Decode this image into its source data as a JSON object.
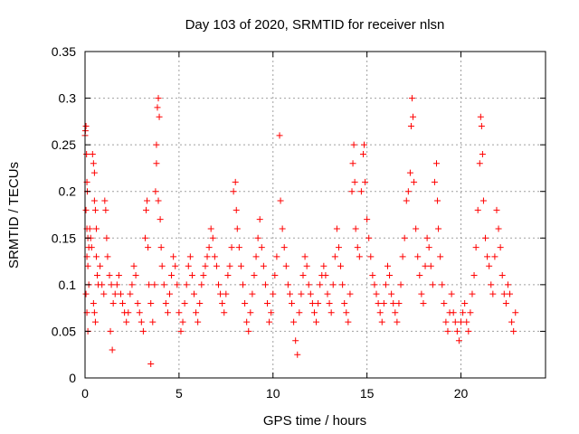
{
  "chart_data": {
    "type": "scatter",
    "title": "Day 103 of 2020, SRMTID for receiver nlsn",
    "xlabel": "GPS time / hours",
    "ylabel": "SRMTID / TECUs",
    "xlim": [
      0,
      24.5
    ],
    "ylim": [
      0,
      0.35
    ],
    "xticks": [
      0,
      5,
      10,
      15,
      20
    ],
    "xtick_labels": [
      "0",
      "5",
      "10",
      "15",
      "20"
    ],
    "yticks": [
      0,
      0.05,
      0.1,
      0.15,
      0.2,
      0.25,
      0.3,
      0.35
    ],
    "ytick_labels": [
      "0",
      "0.05",
      "0.1",
      "0.15",
      "0.2",
      "0.25",
      "0.3",
      "0.35"
    ],
    "grid": true,
    "marker": "+",
    "color": "#ff0000",
    "series": [
      {
        "points": [
          [
            0.0,
            0.26
          ],
          [
            0.02,
            0.265
          ],
          [
            0.05,
            0.27
          ],
          [
            0.08,
            0.24
          ],
          [
            0.1,
            0.21
          ],
          [
            0.12,
            0.2
          ],
          [
            0.05,
            0.18
          ],
          [
            0.1,
            0.16
          ],
          [
            0.15,
            0.15
          ],
          [
            0.2,
            0.14
          ],
          [
            0.1,
            0.13
          ],
          [
            0.15,
            0.12
          ],
          [
            0.2,
            0.1
          ],
          [
            0.05,
            0.09
          ],
          [
            0.1,
            0.07
          ],
          [
            0.15,
            0.05
          ],
          [
            0.25,
            0.16
          ],
          [
            0.3,
            0.15
          ],
          [
            0.35,
            0.14
          ],
          [
            0.4,
            0.24
          ],
          [
            0.45,
            0.23
          ],
          [
            0.5,
            0.22
          ],
          [
            0.5,
            0.19
          ],
          [
            0.55,
            0.18
          ],
          [
            0.6,
            0.16
          ],
          [
            0.6,
            0.13
          ],
          [
            0.65,
            0.11
          ],
          [
            0.7,
            0.1
          ],
          [
            0.45,
            0.08
          ],
          [
            0.5,
            0.07
          ],
          [
            0.55,
            0.06
          ],
          [
            0.8,
            0.12
          ],
          [
            0.9,
            0.1
          ],
          [
            1.0,
            0.09
          ],
          [
            1.05,
            0.19
          ],
          [
            1.1,
            0.18
          ],
          [
            1.15,
            0.15
          ],
          [
            1.2,
            0.13
          ],
          [
            1.3,
            0.11
          ],
          [
            1.4,
            0.1
          ],
          [
            1.35,
            0.05
          ],
          [
            1.45,
            0.03
          ],
          [
            1.5,
            0.08
          ],
          [
            1.6,
            0.09
          ],
          [
            1.7,
            0.1
          ],
          [
            1.8,
            0.11
          ],
          [
            1.9,
            0.09
          ],
          [
            2.0,
            0.08
          ],
          [
            2.1,
            0.07
          ],
          [
            2.2,
            0.06
          ],
          [
            2.3,
            0.07
          ],
          [
            2.4,
            0.09
          ],
          [
            2.5,
            0.1
          ],
          [
            2.6,
            0.12
          ],
          [
            2.7,
            0.11
          ],
          [
            2.8,
            0.08
          ],
          [
            2.9,
            0.07
          ],
          [
            3.0,
            0.06
          ],
          [
            3.1,
            0.05
          ],
          [
            3.2,
            0.15
          ],
          [
            3.25,
            0.18
          ],
          [
            3.3,
            0.19
          ],
          [
            3.35,
            0.14
          ],
          [
            3.4,
            0.1
          ],
          [
            3.5,
            0.08
          ],
          [
            3.6,
            0.06
          ],
          [
            3.5,
            0.015
          ],
          [
            3.7,
            0.1
          ],
          [
            3.75,
            0.2
          ],
          [
            3.8,
            0.23
          ],
          [
            3.8,
            0.25
          ],
          [
            3.85,
            0.29
          ],
          [
            3.9,
            0.3
          ],
          [
            3.95,
            0.28
          ],
          [
            3.9,
            0.19
          ],
          [
            4.0,
            0.17
          ],
          [
            4.05,
            0.14
          ],
          [
            4.1,
            0.12
          ],
          [
            4.2,
            0.1
          ],
          [
            4.3,
            0.08
          ],
          [
            4.4,
            0.07
          ],
          [
            4.5,
            0.09
          ],
          [
            4.6,
            0.11
          ],
          [
            4.7,
            0.13
          ],
          [
            4.8,
            0.12
          ],
          [
            4.9,
            0.1
          ],
          [
            5.0,
            0.07
          ],
          [
            5.1,
            0.05
          ],
          [
            5.2,
            0.06
          ],
          [
            5.3,
            0.08
          ],
          [
            5.4,
            0.1
          ],
          [
            5.5,
            0.12
          ],
          [
            5.6,
            0.13
          ],
          [
            5.7,
            0.11
          ],
          [
            5.8,
            0.09
          ],
          [
            5.9,
            0.07
          ],
          [
            6.0,
            0.06
          ],
          [
            6.1,
            0.08
          ],
          [
            6.2,
            0.1
          ],
          [
            6.3,
            0.11
          ],
          [
            6.4,
            0.12
          ],
          [
            6.5,
            0.13
          ],
          [
            6.6,
            0.14
          ],
          [
            6.7,
            0.16
          ],
          [
            6.8,
            0.15
          ],
          [
            6.9,
            0.13
          ],
          [
            7.0,
            0.12
          ],
          [
            7.1,
            0.1
          ],
          [
            7.2,
            0.09
          ],
          [
            7.3,
            0.08
          ],
          [
            7.4,
            0.07
          ],
          [
            7.5,
            0.09
          ],
          [
            7.6,
            0.11
          ],
          [
            7.7,
            0.12
          ],
          [
            7.8,
            0.14
          ],
          [
            7.9,
            0.2
          ],
          [
            8.0,
            0.21
          ],
          [
            8.05,
            0.18
          ],
          [
            8.1,
            0.16
          ],
          [
            8.2,
            0.14
          ],
          [
            8.3,
            0.12
          ],
          [
            8.4,
            0.1
          ],
          [
            8.5,
            0.08
          ],
          [
            8.6,
            0.06
          ],
          [
            8.7,
            0.05
          ],
          [
            8.8,
            0.07
          ],
          [
            8.9,
            0.09
          ],
          [
            9.0,
            0.11
          ],
          [
            9.1,
            0.13
          ],
          [
            9.2,
            0.15
          ],
          [
            9.3,
            0.17
          ],
          [
            9.4,
            0.14
          ],
          [
            9.5,
            0.12
          ],
          [
            9.6,
            0.1
          ],
          [
            9.7,
            0.08
          ],
          [
            9.8,
            0.06
          ],
          [
            9.9,
            0.07
          ],
          [
            10.0,
            0.09
          ],
          [
            10.1,
            0.11
          ],
          [
            10.2,
            0.13
          ],
          [
            10.35,
            0.26
          ],
          [
            10.4,
            0.19
          ],
          [
            10.5,
            0.16
          ],
          [
            10.6,
            0.14
          ],
          [
            10.7,
            0.12
          ],
          [
            10.8,
            0.1
          ],
          [
            10.9,
            0.09
          ],
          [
            11.0,
            0.08
          ],
          [
            11.1,
            0.06
          ],
          [
            11.2,
            0.04
          ],
          [
            11.3,
            0.025
          ],
          [
            11.4,
            0.07
          ],
          [
            11.5,
            0.09
          ],
          [
            11.6,
            0.11
          ],
          [
            11.7,
            0.13
          ],
          [
            11.8,
            0.12
          ],
          [
            11.9,
            0.1
          ],
          [
            12.0,
            0.09
          ],
          [
            12.1,
            0.08
          ],
          [
            12.2,
            0.07
          ],
          [
            12.3,
            0.06
          ],
          [
            12.4,
            0.08
          ],
          [
            12.5,
            0.1
          ],
          [
            12.6,
            0.11
          ],
          [
            12.7,
            0.12
          ],
          [
            12.8,
            0.11
          ],
          [
            12.9,
            0.09
          ],
          [
            13.0,
            0.08
          ],
          [
            13.1,
            0.07
          ],
          [
            13.2,
            0.1
          ],
          [
            13.3,
            0.13
          ],
          [
            13.4,
            0.16
          ],
          [
            13.5,
            0.14
          ],
          [
            13.6,
            0.12
          ],
          [
            13.7,
            0.1
          ],
          [
            13.8,
            0.08
          ],
          [
            13.9,
            0.07
          ],
          [
            14.0,
            0.06
          ],
          [
            14.1,
            0.09
          ],
          [
            14.2,
            0.2
          ],
          [
            14.25,
            0.23
          ],
          [
            14.3,
            0.25
          ],
          [
            14.35,
            0.21
          ],
          [
            14.4,
            0.16
          ],
          [
            14.5,
            0.14
          ],
          [
            14.6,
            0.13
          ],
          [
            14.7,
            0.2
          ],
          [
            14.8,
            0.24
          ],
          [
            14.85,
            0.25
          ],
          [
            14.9,
            0.21
          ],
          [
            15.0,
            0.17
          ],
          [
            15.1,
            0.15
          ],
          [
            15.2,
            0.13
          ],
          [
            15.3,
            0.11
          ],
          [
            15.4,
            0.1
          ],
          [
            15.5,
            0.09
          ],
          [
            15.6,
            0.08
          ],
          [
            15.7,
            0.07
          ],
          [
            15.8,
            0.06
          ],
          [
            15.9,
            0.08
          ],
          [
            16.0,
            0.1
          ],
          [
            16.1,
            0.12
          ],
          [
            16.2,
            0.11
          ],
          [
            16.3,
            0.09
          ],
          [
            16.4,
            0.08
          ],
          [
            16.5,
            0.07
          ],
          [
            16.6,
            0.06
          ],
          [
            16.7,
            0.08
          ],
          [
            16.8,
            0.1
          ],
          [
            16.9,
            0.13
          ],
          [
            17.0,
            0.15
          ],
          [
            17.1,
            0.19
          ],
          [
            17.2,
            0.2
          ],
          [
            17.3,
            0.22
          ],
          [
            17.35,
            0.27
          ],
          [
            17.4,
            0.3
          ],
          [
            17.45,
            0.28
          ],
          [
            17.5,
            0.21
          ],
          [
            17.6,
            0.16
          ],
          [
            17.7,
            0.13
          ],
          [
            17.8,
            0.11
          ],
          [
            17.9,
            0.09
          ],
          [
            18.0,
            0.08
          ],
          [
            18.1,
            0.12
          ],
          [
            18.2,
            0.15
          ],
          [
            18.3,
            0.14
          ],
          [
            18.4,
            0.12
          ],
          [
            18.5,
            0.1
          ],
          [
            18.6,
            0.21
          ],
          [
            18.7,
            0.23
          ],
          [
            18.75,
            0.19
          ],
          [
            18.8,
            0.16
          ],
          [
            18.9,
            0.13
          ],
          [
            19.0,
            0.1
          ],
          [
            19.1,
            0.08
          ],
          [
            19.2,
            0.06
          ],
          [
            19.3,
            0.05
          ],
          [
            19.4,
            0.07
          ],
          [
            19.5,
            0.09
          ],
          [
            19.6,
            0.07
          ],
          [
            19.7,
            0.06
          ],
          [
            19.8,
            0.05
          ],
          [
            19.9,
            0.04
          ],
          [
            20.0,
            0.06
          ],
          [
            20.1,
            0.07
          ],
          [
            20.2,
            0.08
          ],
          [
            20.3,
            0.06
          ],
          [
            20.4,
            0.05
          ],
          [
            20.5,
            0.07
          ],
          [
            20.6,
            0.09
          ],
          [
            20.7,
            0.11
          ],
          [
            20.8,
            0.14
          ],
          [
            20.9,
            0.18
          ],
          [
            21.0,
            0.23
          ],
          [
            21.05,
            0.28
          ],
          [
            21.1,
            0.27
          ],
          [
            21.15,
            0.24
          ],
          [
            21.2,
            0.19
          ],
          [
            21.3,
            0.15
          ],
          [
            21.4,
            0.13
          ],
          [
            21.5,
            0.12
          ],
          [
            21.6,
            0.1
          ],
          [
            21.7,
            0.09
          ],
          [
            21.8,
            0.13
          ],
          [
            21.9,
            0.18
          ],
          [
            22.0,
            0.16
          ],
          [
            22.1,
            0.14
          ],
          [
            22.2,
            0.11
          ],
          [
            22.3,
            0.09
          ],
          [
            22.4,
            0.08
          ],
          [
            22.5,
            0.1
          ],
          [
            22.6,
            0.09
          ],
          [
            22.7,
            0.06
          ],
          [
            22.8,
            0.05
          ],
          [
            22.9,
            0.07
          ]
        ]
      }
    ]
  }
}
